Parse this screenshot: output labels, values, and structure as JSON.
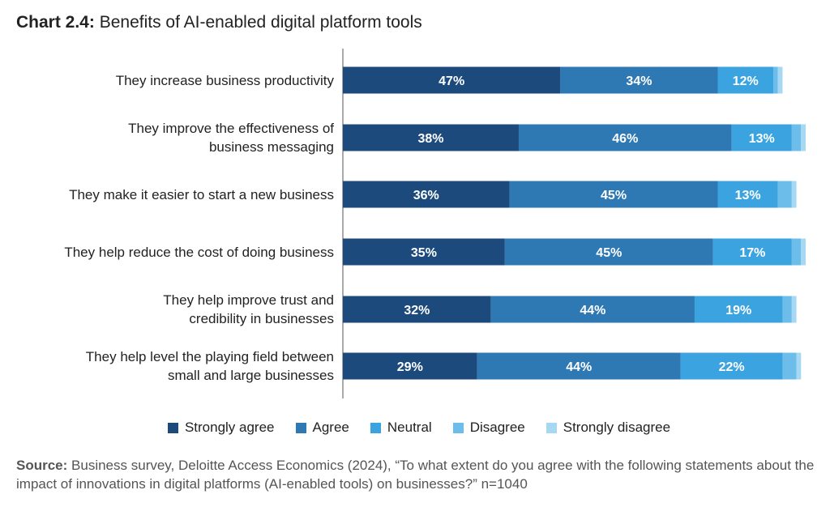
{
  "title": {
    "prefix": "Chart 2.4:",
    "text": "Benefits of AI-enabled digital platform tools"
  },
  "source": {
    "prefix": "Source:",
    "text": "Business survey, Deloitte Access Economics (2024), “To what extent do you agree with the following statements about the impact of innovations in digital platforms (AI-enabled tools) on businesses?” n=1040"
  },
  "colors": {
    "strongly_agree": "#1c4a7d",
    "agree": "#2e78b4",
    "neutral": "#3aa3e0",
    "disagree": "#6cbde9",
    "strongly_disagree": "#a7d8f3"
  },
  "chart_data": {
    "type": "bar",
    "orientation": "horizontal",
    "stacked": true,
    "categories": [
      [
        "They increase business productivity"
      ],
      [
        "They improve the effectiveness of",
        "business messaging"
      ],
      [
        "They make it easier to start a new business"
      ],
      [
        "They help reduce the cost of doing business"
      ],
      [
        "They help improve trust and",
        "credibility in businesses"
      ],
      [
        "They help level the playing field between",
        "small and large businesses"
      ]
    ],
    "series": [
      {
        "name": "Strongly agree",
        "color": "#1c4a7d",
        "values": [
          47,
          38,
          36,
          35,
          32,
          29
        ],
        "labels": [
          "47%",
          "38%",
          "36%",
          "35%",
          "32%",
          "29%"
        ]
      },
      {
        "name": "Agree",
        "color": "#2e78b4",
        "values": [
          34,
          46,
          45,
          45,
          44,
          44
        ],
        "labels": [
          "34%",
          "46%",
          "45%",
          "45%",
          "44%",
          "44%"
        ]
      },
      {
        "name": "Neutral",
        "color": "#3aa3e0",
        "values": [
          12,
          13,
          13,
          17,
          19,
          22
        ],
        "labels": [
          "12%",
          "13%",
          "13%",
          "17%",
          "19%",
          "22%"
        ]
      },
      {
        "name": "Disagree",
        "color": "#6cbde9",
        "values": [
          1,
          2,
          3,
          2,
          2,
          3
        ],
        "labels": [
          "",
          "",
          "",
          "",
          "",
          ""
        ]
      },
      {
        "name": "Strongly disagree",
        "color": "#a7d8f3",
        "values": [
          1,
          1,
          1,
          1,
          1,
          1
        ],
        "labels": [
          "",
          "",
          "",
          "",
          "",
          ""
        ]
      }
    ],
    "xlim": [
      0,
      100
    ],
    "grid": false,
    "legend_position": "bottom"
  }
}
